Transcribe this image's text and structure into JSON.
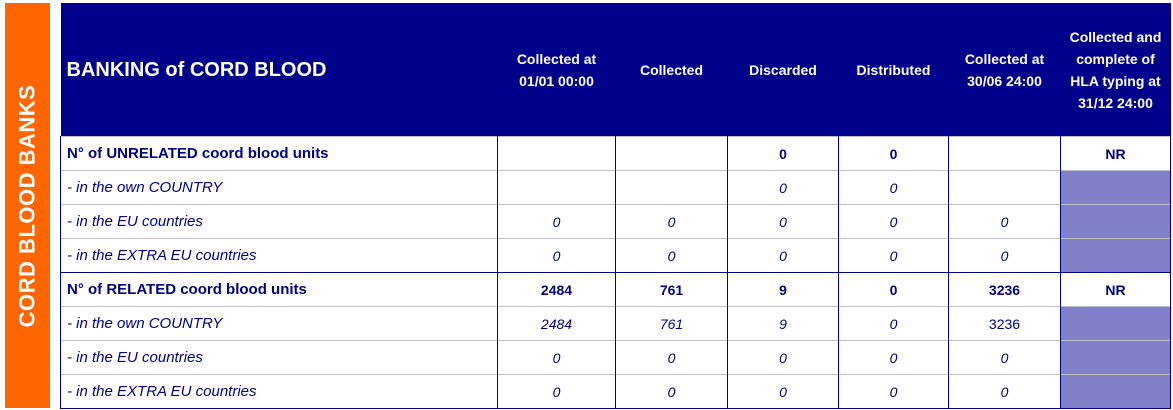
{
  "side_label": "CORD BLOOD BANKS",
  "title": "BANKING of CORD BLOOD",
  "columns": [
    "Collected at 01/01 00:00",
    "Collected",
    "Discarded",
    "Distributed",
    "Collected at 30/06 24:00",
    "Collected and complete of HLA typing at 31/12 24:00"
  ],
  "rows": [
    {
      "label": "N° of UNRELATED coord blood units",
      "type": "main",
      "values": [
        "",
        "",
        "0",
        "0",
        "",
        "NR"
      ]
    },
    {
      "label": " - in the own COUNTRY",
      "type": "sub",
      "values": [
        "",
        "",
        "0",
        "0",
        "",
        ""
      ]
    },
    {
      "label": " - in the EU countries",
      "type": "sub",
      "values": [
        "0",
        "0",
        "0",
        "0",
        "0",
        ""
      ]
    },
    {
      "label": " - in the EXTRA EU countries",
      "type": "sub",
      "values": [
        "0",
        "0",
        "0",
        "0",
        "0",
        ""
      ]
    },
    {
      "label": "N° of RELATED coord blood units",
      "type": "main",
      "values": [
        "2484",
        "761",
        "9",
        "0",
        "3236",
        "NR"
      ]
    },
    {
      "label": " - in the own COUNTRY",
      "type": "sub",
      "values": [
        "2484",
        "761",
        "9",
        "0",
        "3236",
        ""
      ]
    },
    {
      "label": " - in the EU countries",
      "type": "sub",
      "values": [
        "0",
        "0",
        "0",
        "0",
        "0",
        ""
      ]
    },
    {
      "label": " - in the EXTRA EU countries",
      "type": "sub",
      "values": [
        "0",
        "0",
        "0",
        "0",
        "0",
        ""
      ]
    }
  ],
  "colors": {
    "orange": "#ff6600",
    "header": "#00008b",
    "shaded": "#8080c8"
  }
}
